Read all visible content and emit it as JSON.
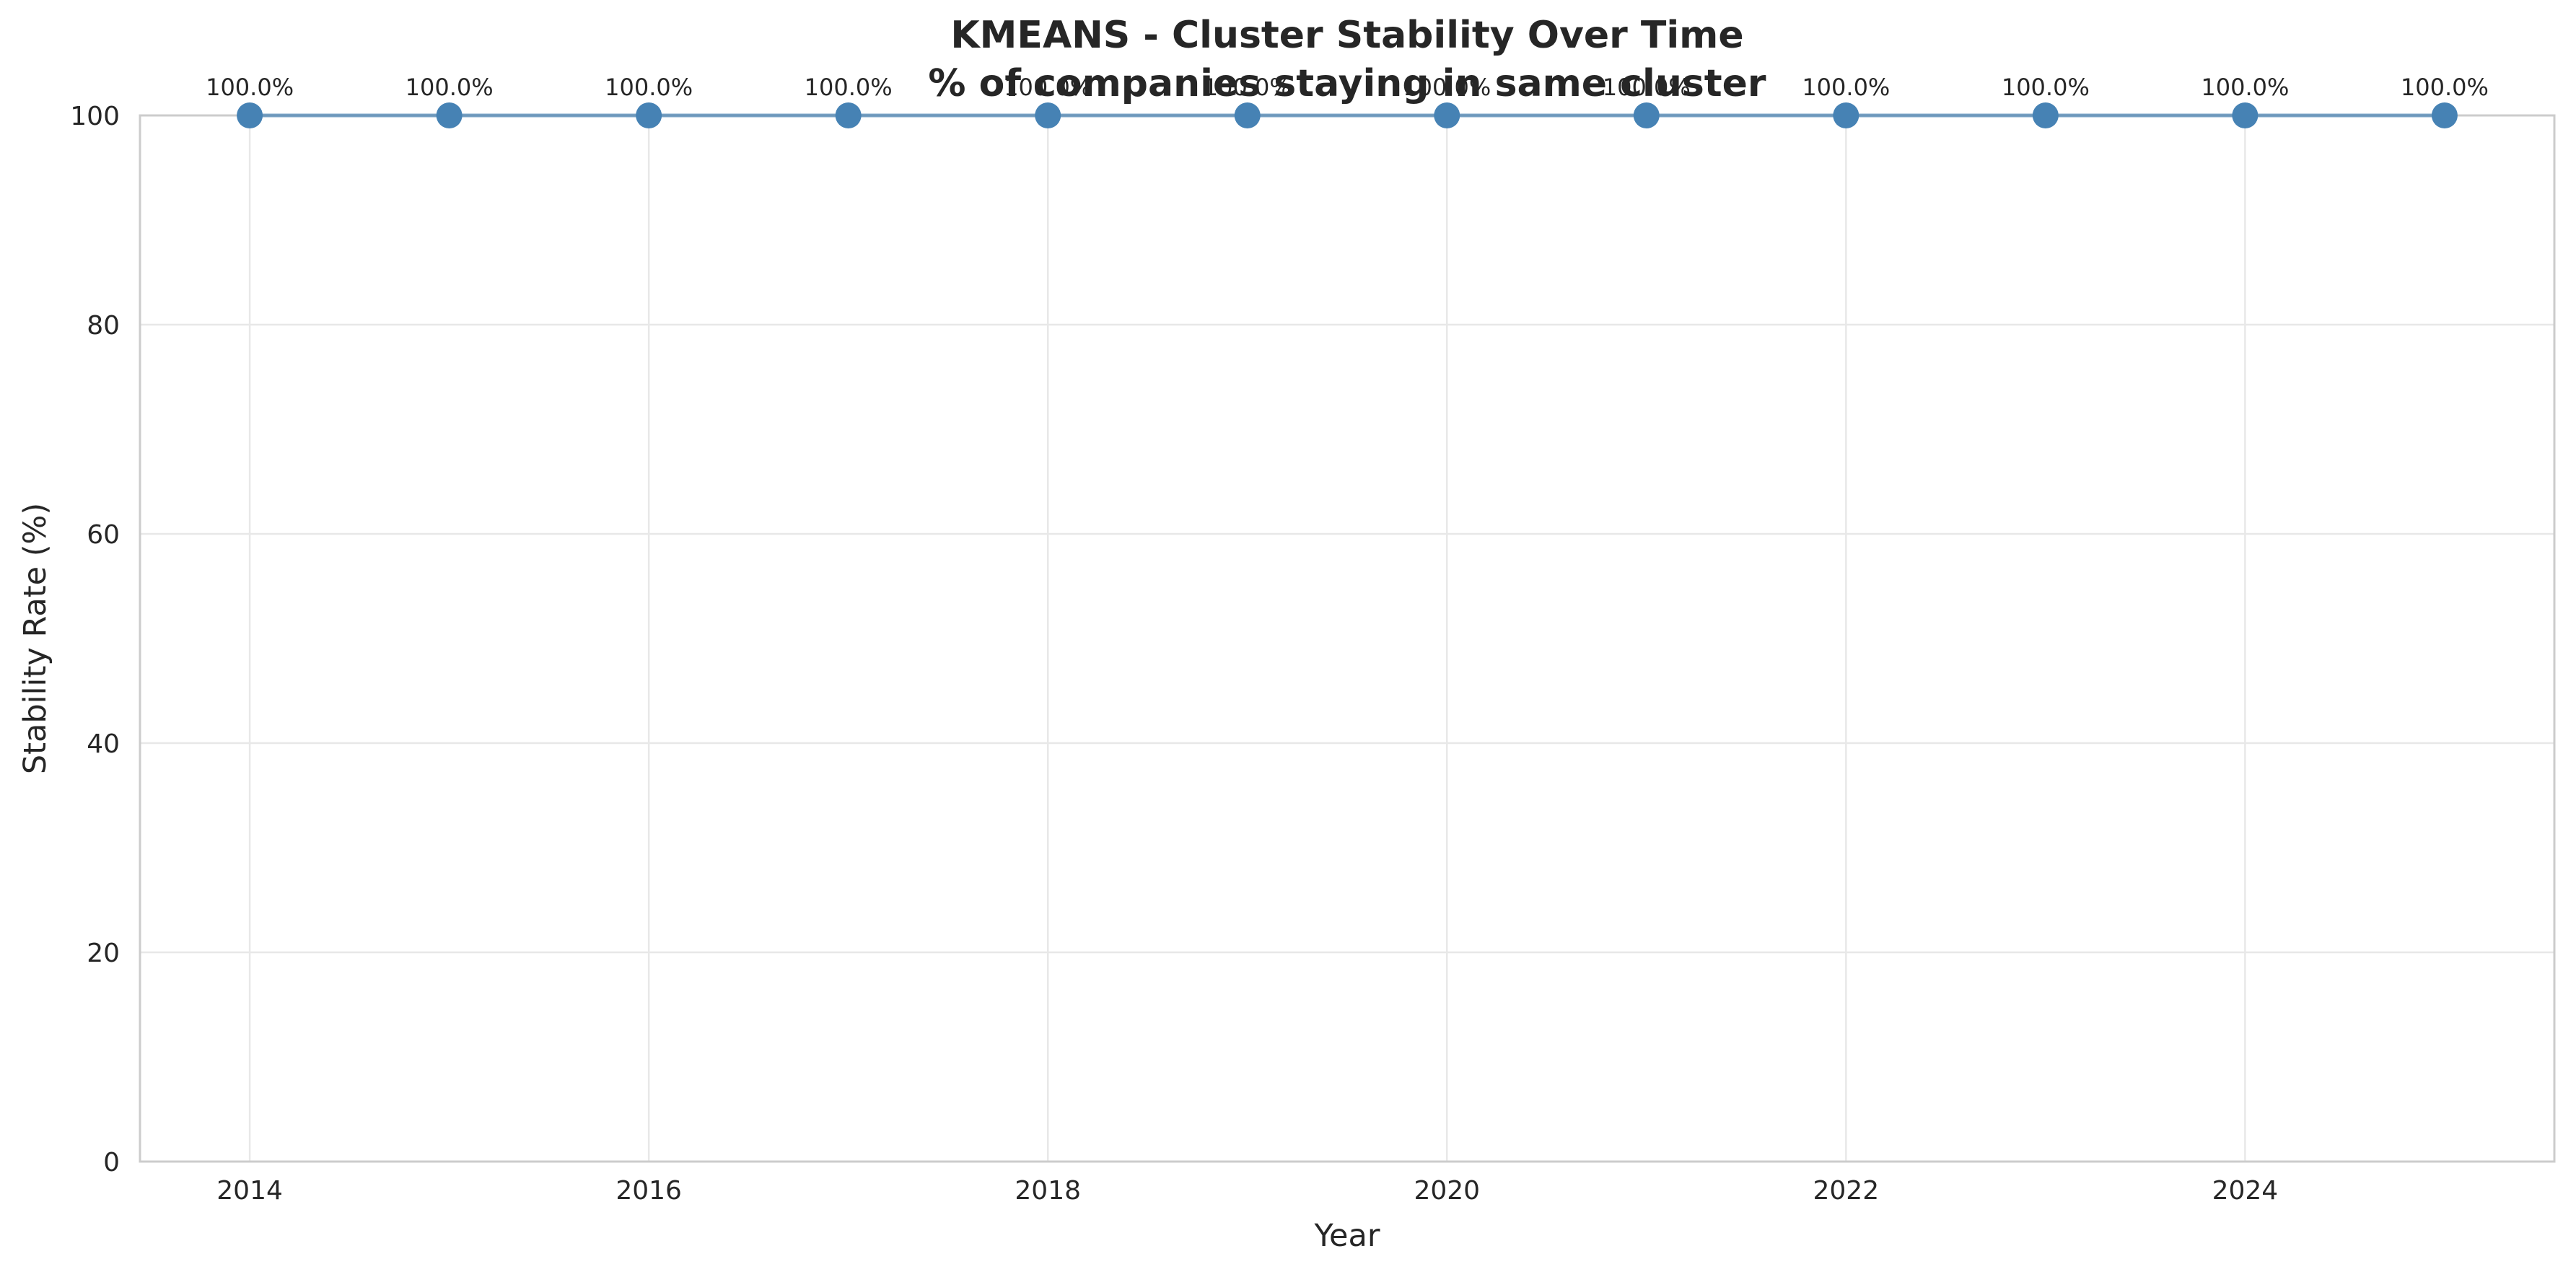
{
  "chart_data": {
    "type": "line",
    "title": "KMEANS - Cluster Stability Over Time",
    "subtitle": "% of companies staying in same cluster",
    "xlabel": "Year",
    "ylabel": "Stability Rate (%)",
    "xlim": [
      2013.45,
      2025.55
    ],
    "ylim": [
      0,
      100
    ],
    "x_ticks": [
      2014,
      2016,
      2018,
      2020,
      2022,
      2024
    ],
    "y_ticks": [
      0,
      20,
      40,
      60,
      80,
      100
    ],
    "grid": true,
    "x": [
      2014,
      2015,
      2016,
      2017,
      2018,
      2019,
      2020,
      2021,
      2022,
      2023,
      2024,
      2025
    ],
    "series": [
      {
        "values": [
          100.0,
          100.0,
          100.0,
          100.0,
          100.0,
          100.0,
          100.0,
          100.0,
          100.0,
          100.0,
          100.0,
          100.0
        ],
        "labels": [
          "100.0%",
          "100.0%",
          "100.0%",
          "100.0%",
          "100.0%",
          "100.0%",
          "100.0%",
          "100.0%",
          "100.0%",
          "100.0%",
          "100.0%",
          "100.0%"
        ],
        "color": "#4682b4"
      }
    ]
  }
}
